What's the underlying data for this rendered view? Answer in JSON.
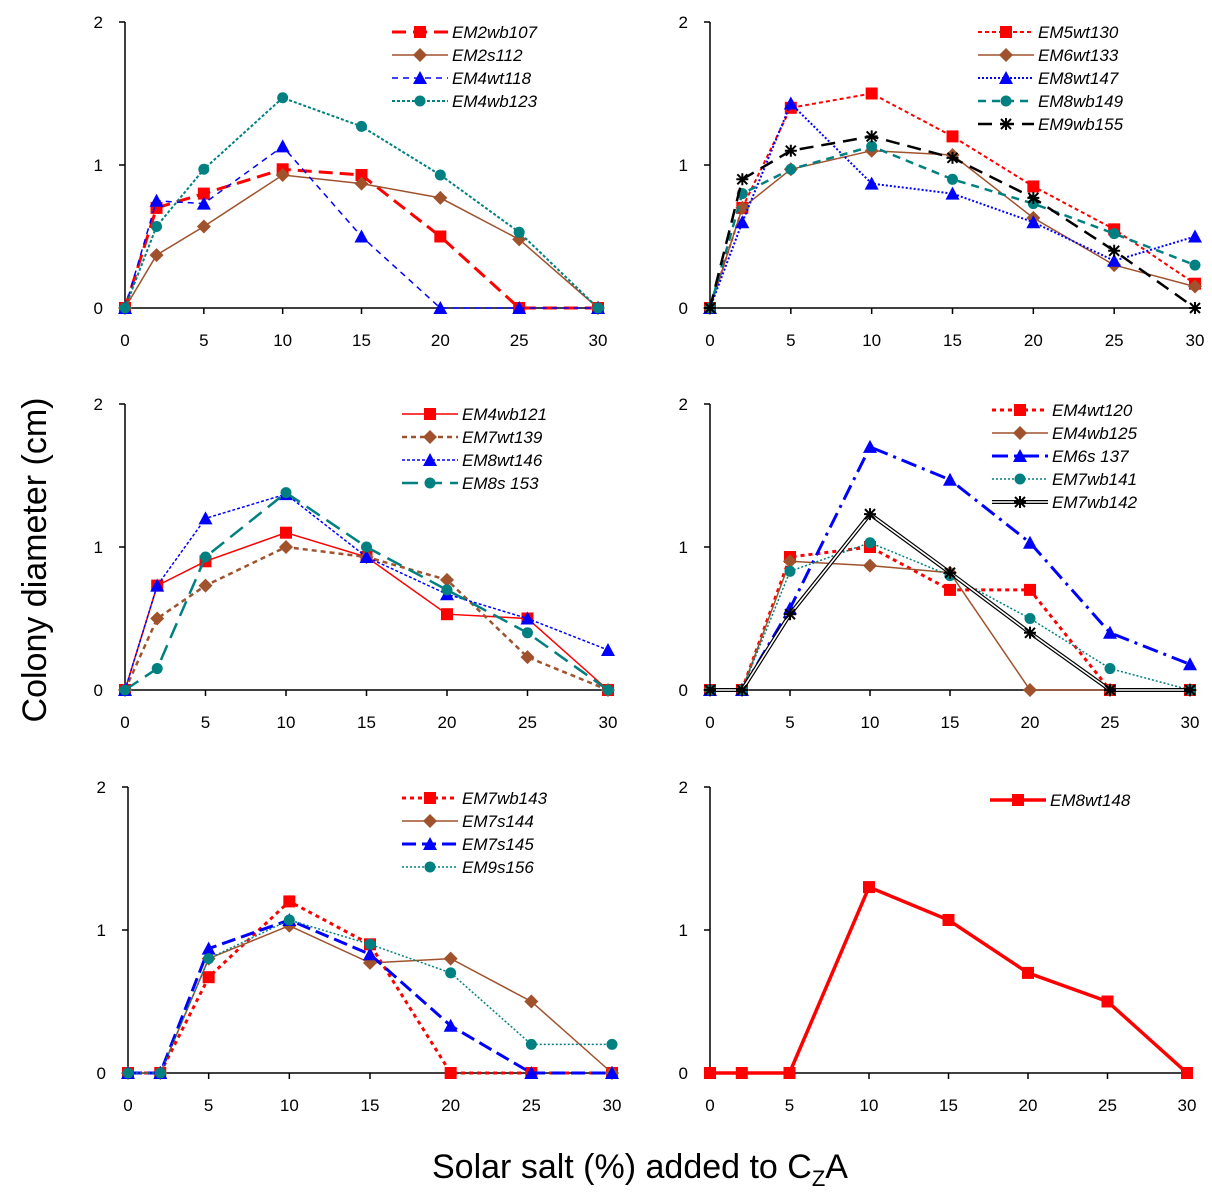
{
  "ylabel": "Colony diameter (cm)",
  "xlabel": {
    "main": "Solar salt (%) added to C",
    "sub": "Z",
    "tail": "A"
  },
  "chart_data": [
    {
      "type": "line",
      "x": [
        0,
        2,
        5,
        10,
        15,
        20,
        25,
        30
      ],
      "xticks": [
        0,
        5,
        10,
        15,
        20,
        25,
        30
      ],
      "yticks": [
        0,
        1,
        2
      ],
      "xlim": [
        0,
        30
      ],
      "ylim": [
        0,
        2
      ],
      "legend_position": "top-right",
      "series": [
        {
          "name": "EM2wb107",
          "color": "#ff0000",
          "marker": "square",
          "dash": "14,7",
          "width": 3,
          "values": [
            0,
            0.7,
            0.8,
            0.97,
            0.93,
            0.5,
            0,
            0
          ]
        },
        {
          "name": "EM2s112",
          "color": "#a0522d",
          "marker": "diamond",
          "dash": "",
          "width": 1.5,
          "values": [
            0,
            0.37,
            0.57,
            0.93,
            0.87,
            0.77,
            0.48,
            0
          ]
        },
        {
          "name": "EM4wt118",
          "color": "#0000ff",
          "marker": "triangle",
          "dash": "6,5",
          "width": 1.5,
          "values": [
            0,
            0.75,
            0.73,
            1.13,
            0.5,
            0,
            0,
            0
          ]
        },
        {
          "name": "EM4wb123",
          "color": "#008080",
          "marker": "circle",
          "dash": "3,2",
          "width": 2,
          "values": [
            0,
            0.57,
            0.97,
            1.47,
            1.27,
            0.93,
            0.53,
            0
          ]
        }
      ]
    },
    {
      "type": "line",
      "x": [
        0,
        2,
        5,
        10,
        15,
        20,
        25,
        30
      ],
      "xticks": [
        0,
        5,
        10,
        15,
        20,
        25,
        30
      ],
      "yticks": [
        0,
        1,
        2
      ],
      "xlim": [
        0,
        30
      ],
      "ylim": [
        0,
        2
      ],
      "legend_position": "top-right",
      "series": [
        {
          "name": "EM5wt130",
          "color": "#ff0000",
          "marker": "square",
          "dash": "4,3",
          "width": 2,
          "values": [
            0,
            0.7,
            1.4,
            1.5,
            1.2,
            0.85,
            0.55,
            0.17
          ]
        },
        {
          "name": "EM6wt133",
          "color": "#a0522d",
          "marker": "diamond",
          "dash": "",
          "width": 1.5,
          "values": [
            0,
            0.7,
            0.97,
            1.1,
            1.07,
            0.63,
            0.3,
            0.15
          ]
        },
        {
          "name": "EM8wt147",
          "color": "#0000ff",
          "marker": "triangle",
          "dash": "2,2",
          "width": 2,
          "values": [
            0,
            0.6,
            1.43,
            0.87,
            0.8,
            0.6,
            0.33,
            0.5
          ]
        },
        {
          "name": "EM8wb149",
          "color": "#008080",
          "marker": "circle",
          "dash": "8,6",
          "width": 2.5,
          "values": [
            0,
            0.8,
            0.97,
            1.13,
            0.9,
            0.73,
            0.52,
            0.3
          ]
        },
        {
          "name": "EM9wb155",
          "color": "#000000",
          "marker": "asterisk",
          "dash": "14,8",
          "width": 2.5,
          "values": [
            0,
            0.9,
            1.1,
            1.2,
            1.05,
            0.77,
            0.4,
            0
          ]
        }
      ]
    },
    {
      "type": "line",
      "x": [
        0,
        2,
        5,
        10,
        15,
        20,
        25,
        30
      ],
      "xticks": [
        0,
        5,
        10,
        15,
        20,
        25,
        30
      ],
      "yticks": [
        0,
        1,
        2
      ],
      "xlim": [
        0,
        30
      ],
      "ylim": [
        0,
        2
      ],
      "legend_position": "top-right",
      "series": [
        {
          "name": "EM4wb121",
          "color": "#ff0000",
          "marker": "square",
          "dash": "",
          "width": 1.5,
          "values": [
            0,
            0.73,
            0.9,
            1.1,
            0.93,
            0.53,
            0.5,
            0
          ]
        },
        {
          "name": "EM7wt139",
          "color": "#a0522d",
          "marker": "diamond",
          "dash": "5,4",
          "width": 2.5,
          "values": [
            0,
            0.5,
            0.73,
            1.0,
            0.93,
            0.77,
            0.23,
            0
          ]
        },
        {
          "name": "EM8wt146",
          "color": "#0000ff",
          "marker": "triangle",
          "dash": "3,2",
          "width": 1.5,
          "values": [
            0,
            0.73,
            1.2,
            1.37,
            0.93,
            0.67,
            0.5,
            0.28
          ]
        },
        {
          "name": "EM8s 153",
          "color": "#008080",
          "marker": "circle",
          "dash": "16,8",
          "width": 2.5,
          "values": [
            0,
            0.15,
            0.93,
            1.38,
            1.0,
            0.7,
            0.4,
            0
          ]
        }
      ]
    },
    {
      "type": "line",
      "x": [
        0,
        2,
        5,
        10,
        15,
        20,
        25,
        30
      ],
      "xticks": [
        0,
        5,
        10,
        15,
        20,
        25,
        30
      ],
      "yticks": [
        0,
        1,
        2
      ],
      "xlim": [
        0,
        30
      ],
      "ylim": [
        0,
        2
      ],
      "legend_position": "top-right",
      "series": [
        {
          "name": "EM4wt120",
          "color": "#ff0000",
          "marker": "square",
          "dash": "4,4",
          "width": 3,
          "values": [
            0,
            0,
            0.93,
            1.0,
            0.7,
            0.7,
            0,
            0
          ]
        },
        {
          "name": "EM4wb125",
          "color": "#a0522d",
          "marker": "diamond",
          "dash": "",
          "width": 1.5,
          "values": [
            0,
            0,
            0.9,
            0.87,
            0.82,
            0,
            0,
            0
          ]
        },
        {
          "name": "EM6s 137",
          "color": "#0000ff",
          "marker": "triangle",
          "dash": "16,6,3,6",
          "width": 3,
          "values": [
            0,
            0,
            0.57,
            1.7,
            1.47,
            1.03,
            0.4,
            0.18
          ]
        },
        {
          "name": "EM7wb141",
          "color": "#008080",
          "marker": "circle",
          "dash": "2,2",
          "width": 1.5,
          "values": [
            0,
            0,
            0.83,
            1.03,
            0.8,
            0.5,
            0.15,
            0
          ]
        },
        {
          "name": "EM7wb142",
          "color": "#000000",
          "marker": "asterisk",
          "dash": "",
          "width": 1,
          "double": true,
          "values": [
            0,
            0,
            0.53,
            1.23,
            0.82,
            0.4,
            0,
            0
          ]
        }
      ]
    },
    {
      "type": "line",
      "x": [
        0,
        2,
        5,
        10,
        15,
        20,
        25,
        30
      ],
      "xticks": [
        0,
        5,
        10,
        15,
        20,
        25,
        30
      ],
      "yticks": [
        0,
        1,
        2
      ],
      "xlim": [
        0,
        30
      ],
      "ylim": [
        0,
        2
      ],
      "legend_position": "top-right",
      "series": [
        {
          "name": "EM7wb143",
          "color": "#ff0000",
          "marker": "square",
          "dash": "4,4",
          "width": 3,
          "values": [
            0,
            0,
            0.67,
            1.2,
            0.9,
            0,
            0,
            0
          ]
        },
        {
          "name": "EM7s144",
          "color": "#a0522d",
          "marker": "diamond",
          "dash": "",
          "width": 1.5,
          "values": [
            0,
            0,
            0.8,
            1.03,
            0.77,
            0.8,
            0.5,
            0
          ]
        },
        {
          "name": "EM7s145",
          "color": "#0000ff",
          "marker": "triangle",
          "dash": "14,6",
          "width": 3,
          "values": [
            0,
            0,
            0.87,
            1.07,
            0.83,
            0.33,
            0,
            0
          ]
        },
        {
          "name": "EM9s156",
          "color": "#008080",
          "marker": "circle",
          "dash": "2,2",
          "width": 1.5,
          "values": [
            0,
            0,
            0.8,
            1.07,
            0.9,
            0.7,
            0.2,
            0.2
          ]
        }
      ]
    },
    {
      "type": "line",
      "x": [
        0,
        2,
        5,
        10,
        15,
        20,
        25,
        30
      ],
      "xticks": [
        0,
        5,
        10,
        15,
        20,
        25,
        30
      ],
      "yticks": [
        0,
        1,
        2
      ],
      "xlim": [
        0,
        30
      ],
      "ylim": [
        0,
        2
      ],
      "legend_position": "top-right",
      "series": [
        {
          "name": "EM8wt148",
          "color": "#ff0000",
          "marker": "square",
          "dash": "",
          "width": 3.5,
          "values": [
            0,
            0,
            0,
            1.3,
            1.07,
            0.7,
            0.5,
            0
          ]
        }
      ]
    }
  ]
}
